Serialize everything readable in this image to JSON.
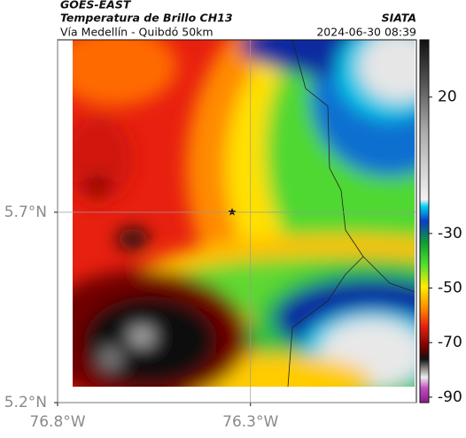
{
  "header": {
    "satellite": "GOES-EAST",
    "product": "Temperatura de Brillo CH13",
    "source": "SIATA",
    "route": "Vía Medellín - Quibdó 50km",
    "datetime": "2024-06-30 08:39"
  },
  "map": {
    "xlim": [
      -76.8,
      -75.87
    ],
    "ylim": [
      5.2,
      6.153
    ],
    "xticks": [
      {
        "value": -76.8,
        "label": "76.8°W"
      },
      {
        "value": -76.3,
        "label": "76.3°W"
      }
    ],
    "yticks": [
      {
        "value": 5.2,
        "label": "5.2°N"
      },
      {
        "value": 5.7,
        "label": "5.7°N"
      }
    ],
    "grid": true
  },
  "colorbar": {
    "lim": [
      -92,
      41
    ],
    "ticks": [
      20,
      -30,
      -50,
      -70,
      -90
    ]
  }
}
